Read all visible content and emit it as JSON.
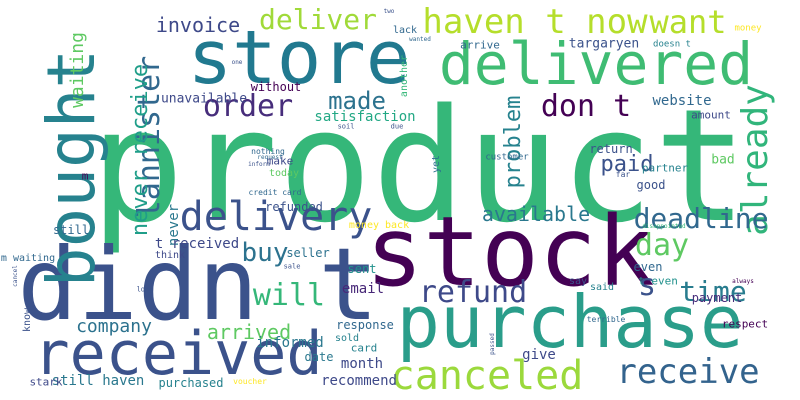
{
  "words": [
    {
      "text": "product",
      "color": "#35b779"
    },
    {
      "text": "stock",
      "color": "#440154"
    },
    {
      "text": "purchase",
      "color": "#2a9d8a"
    },
    {
      "text": "didn t",
      "color": "#3b528b"
    },
    {
      "text": "store",
      "color": "#21798f"
    },
    {
      "text": "delivered",
      "color": "#3fbc73"
    },
    {
      "text": "bought",
      "color": "#26828e"
    },
    {
      "text": "received",
      "color": "#3b528b"
    },
    {
      "text": "canceled",
      "color": "#9bd93c"
    },
    {
      "text": "delivery",
      "color": "#3b528b"
    },
    {
      "text": "order",
      "color": "#472d7b"
    },
    {
      "text": "receive",
      "color": "#33638d"
    },
    {
      "text": "don t",
      "color": "#440154"
    },
    {
      "text": "haven t now",
      "color": "#b5de2b"
    },
    {
      "text": "want",
      "color": "#b5de2b"
    },
    {
      "text": "deliver",
      "color": "#a0da39"
    },
    {
      "text": "lannister",
      "color": "#31688e"
    },
    {
      "text": "already",
      "color": "#31b57b"
    },
    {
      "text": "refund",
      "color": "#3e4989"
    },
    {
      "text": "deadline",
      "color": "#31688e"
    },
    {
      "text": "made",
      "color": "#2c728e"
    },
    {
      "text": "never receive",
      "color": "#1f9e89"
    },
    {
      "text": "day",
      "color": "#5ec962"
    },
    {
      "text": "available",
      "color": "#2a788e"
    },
    {
      "text": "time",
      "color": "#287c8e"
    },
    {
      "text": "s",
      "color": "#3b528b"
    },
    {
      "text": "will",
      "color": "#35b779"
    },
    {
      "text": "buy",
      "color": "#2c728e"
    },
    {
      "text": "arrived",
      "color": "#5ec962"
    },
    {
      "text": "company",
      "color": "#2c728e"
    },
    {
      "text": "problem",
      "color": "#26828e"
    },
    {
      "text": "paid",
      "color": "#3b528b"
    },
    {
      "text": "invoice",
      "color": "#3e4989"
    },
    {
      "text": "waiting",
      "color": "#5ec962"
    },
    {
      "text": "never",
      "color": "#2a788e"
    },
    {
      "text": "satisfaction",
      "color": "#22a884"
    },
    {
      "text": "website",
      "color": "#31688e"
    },
    {
      "text": "targaryen",
      "color": "#3b528b"
    },
    {
      "text": "unavailable",
      "color": "#3e4989"
    },
    {
      "text": "without",
      "color": "#440154"
    },
    {
      "text": "email",
      "color": "#482878"
    },
    {
      "text": "informed",
      "color": "#2a788e"
    },
    {
      "text": "recommend",
      "color": "#3e4989"
    },
    {
      "text": "month",
      "color": "#3e4989"
    },
    {
      "text": "t received",
      "color": "#3e4989"
    },
    {
      "text": "still haven",
      "color": "#2a788e"
    },
    {
      "text": "purchased",
      "color": "#26828e"
    },
    {
      "text": "payment",
      "color": "#472d7b"
    },
    {
      "text": "refunded",
      "color": "#3b528b"
    },
    {
      "text": "credit card",
      "color": "#31688e"
    },
    {
      "text": "money back",
      "color": "#fde725"
    },
    {
      "text": "sent",
      "color": "#21918c"
    },
    {
      "text": "seller",
      "color": "#2c728e"
    },
    {
      "text": "think",
      "color": "#3e4989"
    },
    {
      "text": "give",
      "color": "#3e4989"
    },
    {
      "text": "date",
      "color": "#2a788e"
    },
    {
      "text": "card",
      "color": "#26828e"
    },
    {
      "text": "response",
      "color": "#31688e"
    },
    {
      "text": "say",
      "color": "#3b528b"
    },
    {
      "text": "said",
      "color": "#26828e"
    },
    {
      "text": "respect",
      "color": "#440154"
    },
    {
      "text": "terrible",
      "color": "#31688e"
    },
    {
      "text": "always",
      "color": "#440154"
    },
    {
      "text": "even",
      "color": "#31688e"
    },
    {
      "text": "t even",
      "color": "#21918c"
    },
    {
      "text": "good",
      "color": "#3b528b"
    },
    {
      "text": "partner",
      "color": "#26828e"
    },
    {
      "text": "bad",
      "color": "#5ec962"
    },
    {
      "text": "far",
      "color": "#3b528b"
    },
    {
      "text": "return",
      "color": "#3b528b"
    },
    {
      "text": "customer",
      "color": "#31688e"
    },
    {
      "text": "amount",
      "color": "#3e4989"
    },
    {
      "text": "arrive",
      "color": "#31688e"
    },
    {
      "text": "lack",
      "color": "#31688e"
    },
    {
      "text": "doesn t",
      "color": "#26828e"
    },
    {
      "text": "money",
      "color": "#fde725"
    },
    {
      "text": "another",
      "color": "#35b779"
    },
    {
      "text": "still",
      "color": "#31688e"
    },
    {
      "text": "m waiting",
      "color": "#31688e"
    },
    {
      "text": "stark",
      "color": "#3e4989"
    },
    {
      "text": "voucher",
      "color": "#fde725"
    },
    {
      "text": "sold",
      "color": "#26828e"
    },
    {
      "text": "know",
      "color": "#3b528b"
    },
    {
      "text": "long",
      "color": "#3b528b"
    },
    {
      "text": "sale",
      "color": "#3b528b"
    },
    {
      "text": "make",
      "color": "#3e4989"
    },
    {
      "text": "today",
      "color": "#5ec962"
    },
    {
      "text": "nothing",
      "color": "#31688e"
    },
    {
      "text": "yet",
      "color": "#2c728e"
    },
    {
      "text": "m",
      "color": "#440154"
    },
    {
      "text": "due",
      "color": "#3b528b"
    },
    {
      "text": "soil",
      "color": "#3b528b"
    },
    {
      "text": "two",
      "color": "#3b528b"
    },
    {
      "text": "one",
      "color": "#3b528b"
    },
    {
      "text": "inform",
      "color": "#3b528b"
    },
    {
      "text": "cancel",
      "color": "#3b528b"
    },
    {
      "text": "disappointed",
      "color": "#35b779"
    },
    {
      "text": "passed",
      "color": "#3b528b"
    },
    {
      "text": "wanted",
      "color": "#31688e"
    },
    {
      "text": "request",
      "color": "#31688e"
    }
  ]
}
